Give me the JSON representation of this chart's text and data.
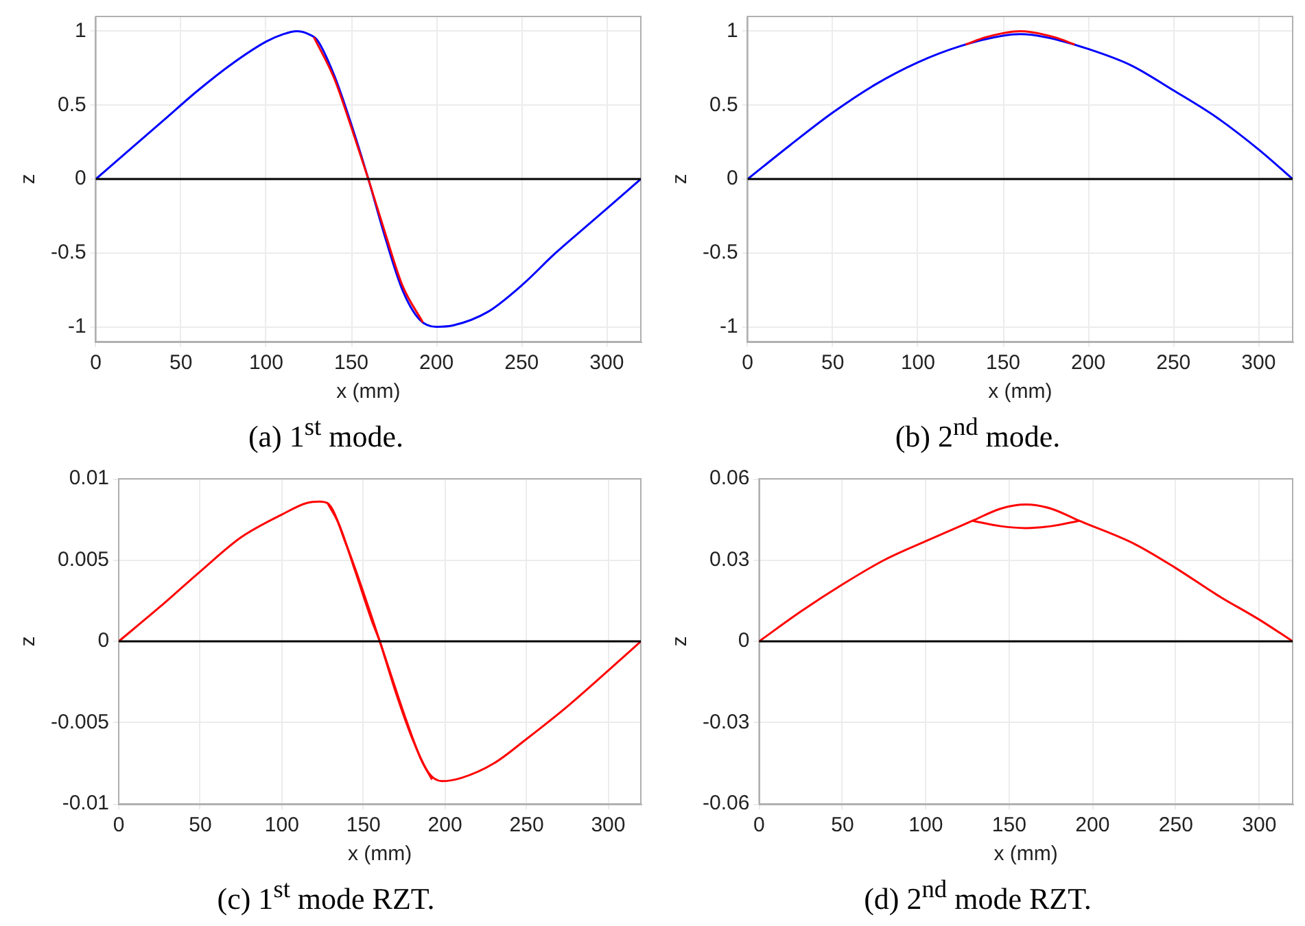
{
  "chart_data": [
    {
      "type": "line",
      "title": "(a) 1$^{st}$ mode.",
      "xlabel": "x (mm)",
      "ylabel": "z",
      "xlim": [
        0,
        320
      ],
      "xticks": [
        0,
        50,
        100,
        150,
        200,
        250,
        300
      ],
      "ylim": [
        -1.1,
        1.1
      ],
      "yticks": [
        -1,
        -0.5,
        0,
        0.5,
        1
      ],
      "grid": true,
      "ref_lines": [
        {
          "axis": "y",
          "value": 0,
          "color": "#000000"
        }
      ],
      "series": [
        {
          "color": "#ff0000",
          "x": [
            128,
            140,
            150,
            160,
            170,
            180,
            192
          ],
          "values": [
            0.96,
            0.68,
            0.35,
            0,
            -0.37,
            -0.72,
            -0.97
          ]
        },
        {
          "color": "#0000ff",
          "x": [
            0,
            20,
            40,
            60,
            80,
            100,
            110,
            118,
            125,
            130,
            140,
            150,
            160,
            170,
            180,
            190,
            200,
            210,
            230,
            250,
            270,
            290,
            310,
            320
          ],
          "values": [
            0,
            0.2,
            0.4,
            0.6,
            0.78,
            0.93,
            0.98,
            1,
            0.98,
            0.94,
            0.7,
            0.37,
            0,
            -0.4,
            -0.75,
            -0.95,
            -1,
            -0.99,
            -0.9,
            -0.72,
            -0.5,
            -0.3,
            -0.1,
            0
          ]
        }
      ]
    },
    {
      "type": "line",
      "title": "(b) 2$^{nd}$ mode.",
      "xlabel": "x (mm)",
      "ylabel": "z",
      "xlim": [
        0,
        320
      ],
      "xticks": [
        0,
        50,
        100,
        150,
        200,
        250,
        300
      ],
      "ylim": [
        -1.1,
        1.1
      ],
      "yticks": [
        -1,
        -0.5,
        0,
        0.5,
        1
      ],
      "grid": true,
      "ref_lines": [
        {
          "axis": "y",
          "value": 0,
          "color": "#000000"
        }
      ],
      "series": [
        {
          "color": "#ff0000",
          "x": [
            128,
            140,
            160,
            180,
            192
          ],
          "values": [
            0.91,
            0.96,
            1,
            0.96,
            0.91
          ]
        },
        {
          "color": "#0000ff",
          "x": [
            0,
            25,
            50,
            75,
            100,
            125,
            150,
            160,
            175,
            200,
            225,
            250,
            275,
            300,
            320
          ],
          "values": [
            0,
            0.23,
            0.45,
            0.64,
            0.79,
            0.9,
            0.97,
            0.98,
            0.96,
            0.88,
            0.77,
            0.6,
            0.42,
            0.2,
            0
          ]
        }
      ]
    },
    {
      "type": "line",
      "title": "(c) 1$^{st}$ mode RZT.",
      "xlabel": "x (mm)",
      "ylabel": "z",
      "xlim": [
        0,
        320
      ],
      "xticks": [
        0,
        50,
        100,
        150,
        200,
        250,
        300
      ],
      "ylim": [
        -0.01,
        0.01
      ],
      "yticks": [
        -0.01,
        -0.005,
        0,
        0.005,
        0.01
      ],
      "grid": true,
      "ref_lines": [
        {
          "axis": "y",
          "value": 0,
          "color": "#000000"
        }
      ],
      "series": [
        {
          "color": "#ff0000",
          "x": [
            0,
            25,
            50,
            75,
            100,
            115,
            123,
            128,
            140,
            150,
            160,
            170,
            180,
            190,
            198,
            210,
            230,
            250,
            275,
            300,
            320
          ],
          "values": [
            0,
            0.0021,
            0.0043,
            0.0064,
            0.0078,
            0.0085,
            0.0086,
            0.0085,
            0.0058,
            0.003,
            0,
            -0.0032,
            -0.006,
            -0.0081,
            -0.0086,
            -0.0084,
            -0.0075,
            -0.006,
            -0.004,
            -0.0018,
            0
          ]
        },
        {
          "color": "#ff0000",
          "x": [
            128,
            135,
            145,
            155,
            160,
            165,
            175,
            185,
            192
          ],
          "values": [
            0.0085,
            0.0072,
            0.0043,
            0.0013,
            0,
            -0.0015,
            -0.0045,
            -0.0072,
            -0.0085
          ]
        }
      ]
    },
    {
      "type": "line",
      "title": "(d) 2$^{nd}$ mode RZT.",
      "xlabel": "x (mm)",
      "ylabel": "z",
      "xlim": [
        0,
        320
      ],
      "xticks": [
        0,
        50,
        100,
        150,
        200,
        250,
        300
      ],
      "ylim": [
        -0.06,
        0.06
      ],
      "yticks": [
        -0.06,
        -0.03,
        0,
        0.03,
        0.06
      ],
      "grid": true,
      "ref_lines": [
        {
          "axis": "y",
          "value": 0,
          "color": "#000000"
        }
      ],
      "series": [
        {
          "color": "#ff0000",
          "x": [
            0,
            25,
            50,
            75,
            100,
            128,
            145,
            160,
            175,
            192,
            225,
            250,
            275,
            300,
            320
          ],
          "values": [
            0,
            0.011,
            0.021,
            0.03,
            0.037,
            0.0445,
            0.049,
            0.0505,
            0.049,
            0.0445,
            0.036,
            0.027,
            0.017,
            0.008,
            0
          ]
        },
        {
          "color": "#ff0000",
          "x": [
            128,
            145,
            160,
            175,
            192
          ],
          "values": [
            0.0445,
            0.0425,
            0.0418,
            0.0425,
            0.0445
          ]
        }
      ]
    }
  ]
}
